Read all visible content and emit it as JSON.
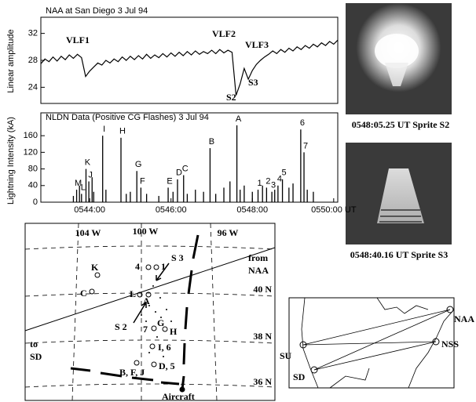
{
  "chart_data": [
    {
      "type": "line",
      "title": "NAA at San Diego  3 Jul 94",
      "y_label": "Linear amplitude",
      "x": [
        342.8,
        342.9,
        343.0,
        343.1,
        343.2,
        343.3,
        343.4,
        343.5,
        343.6,
        343.7,
        343.8,
        343.9,
        344.0,
        344.1,
        344.2,
        344.3,
        344.4,
        344.5,
        344.6,
        344.7,
        344.8,
        344.9,
        345.0,
        345.1,
        345.2,
        345.3,
        345.4,
        345.5,
        345.6,
        345.7,
        345.8,
        345.9,
        346.0,
        346.1,
        346.2,
        346.3,
        346.4,
        346.5,
        346.6,
        346.7,
        346.8,
        346.9,
        347.0,
        347.1,
        347.2,
        347.3,
        347.4,
        347.5,
        347.6,
        347.7,
        347.8,
        347.9,
        348.0,
        348.1,
        348.2,
        348.3,
        348.4,
        348.5,
        348.6,
        348.7,
        348.8,
        348.9,
        349.0,
        349.1,
        349.2,
        349.3,
        349.4,
        349.5,
        349.6,
        349.7,
        349.8,
        349.9,
        350.0,
        350.1
      ],
      "series": [
        {
          "color": "#000000",
          "values": [
            27.5,
            28.2,
            27.8,
            28.5,
            27.9,
            28.6,
            28.1,
            28.8,
            28.3,
            28.9,
            28.4,
            25.6,
            26.4,
            27.0,
            27.6,
            27.3,
            28.0,
            27.6,
            28.2,
            27.8,
            28.5,
            28.0,
            28.6,
            28.1,
            28.7,
            28.2,
            28.9,
            28.3,
            28.8,
            28.4,
            29.0,
            28.5,
            29.1,
            28.6,
            29.2,
            28.7,
            29.3,
            28.8,
            29.4,
            28.9,
            29.3,
            29.0,
            29.5,
            29.0,
            29.6,
            29.1,
            29.5,
            29.2,
            22.8,
            24.5,
            26.8,
            25.2,
            26.5,
            27.4,
            28.0,
            28.5,
            28.9,
            29.4,
            29.0,
            29.6,
            29.2,
            29.8,
            29.4,
            30.0,
            29.6,
            30.2,
            29.8,
            30.4,
            30.0,
            30.6,
            30.2,
            30.8,
            30.4,
            31.0
          ]
        }
      ],
      "annotations": [
        "VLF1",
        "VLF2",
        "VLF3",
        "S2",
        "S3"
      ],
      "xlim": [
        342.8,
        350.1
      ],
      "ylim": [
        21.6,
        34.4
      ],
      "yticks": [
        24,
        28,
        32
      ]
    },
    {
      "type": "stem",
      "title": "NLDN Data (Positive CG Flashes)  3 Jul 94",
      "y_label": "Lightning Intensity (kA)",
      "x": [
        343.6,
        343.68,
        343.75,
        343.8,
        343.91,
        343.98,
        344.06,
        344.1,
        344.32,
        344.4,
        344.77,
        344.9,
        345.0,
        345.16,
        345.26,
        345.4,
        345.7,
        345.93,
        346.05,
        346.16,
        346.31,
        346.4,
        346.6,
        346.8,
        346.96,
        347.1,
        347.3,
        347.45,
        347.62,
        347.7,
        347.8,
        348.0,
        348.14,
        348.25,
        348.35,
        348.48,
        348.55,
        348.63,
        348.74,
        348.9,
        349.0,
        349.19,
        349.27,
        349.35,
        349.5
      ],
      "values": [
        15,
        30,
        40,
        20,
        80,
        50,
        60,
        25,
        160,
        30,
        155,
        20,
        25,
        75,
        35,
        20,
        15,
        35,
        25,
        55,
        65,
        20,
        30,
        25,
        130,
        20,
        35,
        50,
        185,
        30,
        40,
        25,
        30,
        40,
        35,
        25,
        30,
        40,
        55,
        35,
        45,
        175,
        120,
        30,
        25
      ],
      "point_labels": [
        null,
        "M",
        null,
        "L",
        "K",
        "J",
        null,
        null,
        "I",
        null,
        "H",
        null,
        null,
        "G",
        "F",
        null,
        null,
        "E",
        null,
        "D",
        "C",
        null,
        null,
        null,
        "B",
        null,
        null,
        null,
        "A",
        null,
        null,
        null,
        "1",
        null,
        "2",
        "3",
        null,
        "4",
        "5",
        null,
        null,
        "6",
        "7",
        null,
        null
      ],
      "color": "#000000",
      "xlim": [
        342.8,
        350.1
      ],
      "xticks": [
        {
          "value": 344,
          "label": "0544:00"
        },
        {
          "value": 346,
          "label": "0546:00"
        },
        {
          "value": 348,
          "label": "0548:00"
        },
        {
          "value": 350,
          "label": "0550:00 UT"
        }
      ],
      "ylim": [
        0,
        215
      ],
      "yticks": [
        0,
        40,
        80,
        120,
        160
      ]
    }
  ],
  "sprite_images": [
    "0548:05.25 UT Sprite S2",
    "0548:40.16 UT Sprite S3"
  ],
  "map": {
    "longitudes": [
      "104 W",
      "100 W",
      "96 W"
    ],
    "latitudes": [
      "40 N",
      "38 N",
      "36 N"
    ],
    "labels": [
      "from",
      "NAA",
      "to",
      "SD",
      "S 3",
      "S 2",
      "Aircraft",
      "K",
      "C",
      "L",
      "A",
      "4",
      "1",
      "7",
      "G",
      "H",
      "I, 6",
      "B, F, J",
      "D, 5"
    ]
  },
  "inset_map": {
    "labels": [
      "NAA",
      "NSS",
      "SU",
      "SD"
    ]
  }
}
